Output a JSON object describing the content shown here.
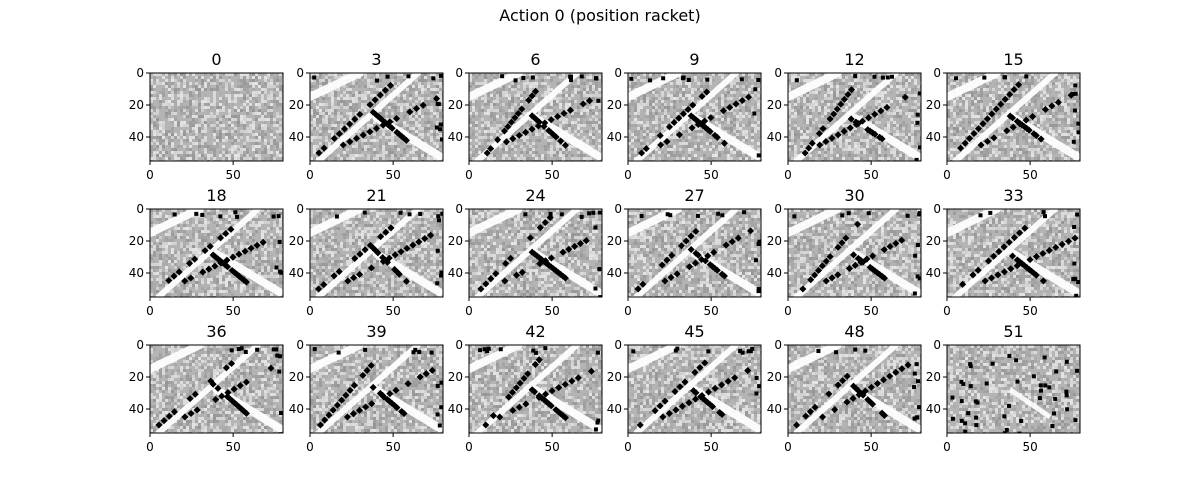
{
  "figure_title": "Action 0 (position racket)",
  "chart_data": {
    "type": "heatmap",
    "title": "Action 0 (position racket)",
    "colormap": "gray",
    "grid": false,
    "image_shape": [
      55,
      80
    ],
    "xlim": [
      0,
      80
    ],
    "ylim": [
      55,
      0
    ],
    "xticks": [
      0,
      50
    ],
    "yticks": [
      0,
      20,
      40
    ],
    "layout": {
      "rows": 3,
      "cols": 6
    },
    "panels": [
      {
        "title": "0",
        "pattern": "noise"
      },
      {
        "title": "3",
        "pattern": "racket-lines"
      },
      {
        "title": "6",
        "pattern": "racket-lines"
      },
      {
        "title": "9",
        "pattern": "racket-lines"
      },
      {
        "title": "12",
        "pattern": "racket-lines"
      },
      {
        "title": "15",
        "pattern": "racket-lines"
      },
      {
        "title": "18",
        "pattern": "racket-lines"
      },
      {
        "title": "21",
        "pattern": "racket-lines"
      },
      {
        "title": "24",
        "pattern": "racket-lines"
      },
      {
        "title": "27",
        "pattern": "racket-lines"
      },
      {
        "title": "30",
        "pattern": "racket-lines"
      },
      {
        "title": "33",
        "pattern": "racket-lines"
      },
      {
        "title": "36",
        "pattern": "racket-lines"
      },
      {
        "title": "39",
        "pattern": "racket-lines"
      },
      {
        "title": "42",
        "pattern": "racket-lines"
      },
      {
        "title": "45",
        "pattern": "racket-lines"
      },
      {
        "title": "48",
        "pattern": "racket-lines"
      },
      {
        "title": "51",
        "pattern": "scattered"
      }
    ]
  }
}
